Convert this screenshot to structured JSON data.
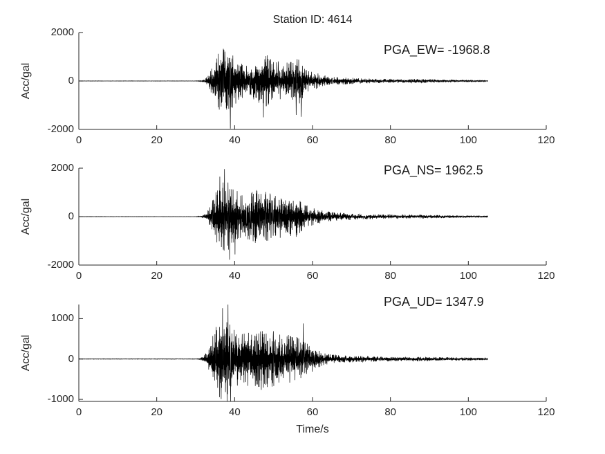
{
  "figure": {
    "background": "#ffffff",
    "axis_color": "#262626",
    "trace_color": "#000000",
    "text_color": "#1a1a1a"
  },
  "chart_data": {
    "type": "line",
    "title": "Station ID: 4614",
    "xlabel": "Time/s",
    "ylabel_shared": "Acc/gal",
    "xlim": [
      0,
      120
    ],
    "xticks": [
      0,
      20,
      40,
      60,
      80,
      100,
      120
    ],
    "grid": false,
    "legend": "none",
    "signal_description": "Three-component strong-motion accelerogram; quiescent 0-31 s, strong shaking 32-62 s, decaying coda ending at 105 s",
    "subplots": [
      {
        "channel": "EW",
        "ylabel": "Acc/gal",
        "annotation": "PGA_EW= -1968.8",
        "pga": -1968.8,
        "ylim": [
          -2000,
          2000
        ],
        "yticks": [
          2000,
          0,
          -2000
        ],
        "signal_start_s": 31,
        "signal_end_s": 105,
        "envelope": [
          [
            0,
            6
          ],
          [
            30,
            6
          ],
          [
            31.5,
            25
          ],
          [
            32.5,
            90
          ],
          [
            33.5,
            300
          ],
          [
            34.5,
            750
          ],
          [
            35.5,
            1050
          ],
          [
            36.5,
            1300
          ],
          [
            37.5,
            1340
          ],
          [
            38.5,
            1300
          ],
          [
            39.5,
            1200
          ],
          [
            40.5,
            900
          ],
          [
            41.5,
            750
          ],
          [
            42.5,
            650
          ],
          [
            43.5,
            620
          ],
          [
            44.5,
            700
          ],
          [
            45.5,
            900
          ],
          [
            46.5,
            1080
          ],
          [
            47.5,
            1150
          ],
          [
            48.5,
            1050
          ],
          [
            49.5,
            900
          ],
          [
            50.5,
            820
          ],
          [
            52,
            800
          ],
          [
            53.5,
            760
          ],
          [
            55,
            880
          ],
          [
            56.5,
            950
          ],
          [
            57.2,
            980
          ],
          [
            58,
            550
          ],
          [
            59,
            430
          ],
          [
            60,
            380
          ],
          [
            61,
            330
          ],
          [
            62,
            290
          ],
          [
            63,
            240
          ],
          [
            64,
            200
          ],
          [
            66,
            170
          ],
          [
            68,
            150
          ],
          [
            70,
            130
          ],
          [
            73,
            110
          ],
          [
            76,
            95
          ],
          [
            80,
            88
          ],
          [
            84,
            75
          ],
          [
            88,
            82
          ],
          [
            92,
            70
          ],
          [
            96,
            55
          ],
          [
            100,
            45
          ],
          [
            103,
            35
          ],
          [
            105,
            25
          ]
        ],
        "peaks": [
          [
            38.9,
            -1968.8
          ],
          [
            37.1,
            1330
          ],
          [
            47.4,
            -1500
          ],
          [
            55.8,
            -1400
          ],
          [
            57.1,
            -1480
          ]
        ]
      },
      {
        "channel": "NS",
        "ylabel": "Acc/gal",
        "annotation": "PGA_NS= 1962.5",
        "pga": 1962.5,
        "ylim": [
          -2000,
          2000
        ],
        "yticks": [
          2000,
          0,
          -2000
        ],
        "signal_start_s": 31,
        "signal_end_s": 105,
        "envelope": [
          [
            0,
            6
          ],
          [
            30,
            6
          ],
          [
            31.5,
            30
          ],
          [
            32.5,
            120
          ],
          [
            33.5,
            350
          ],
          [
            34.5,
            800
          ],
          [
            35.5,
            1150
          ],
          [
            36.5,
            1400
          ],
          [
            37.5,
            1500
          ],
          [
            38.5,
            1400
          ],
          [
            39.5,
            1300
          ],
          [
            40.5,
            1100
          ],
          [
            41.5,
            900
          ],
          [
            42.5,
            850
          ],
          [
            43.5,
            950
          ],
          [
            44.5,
            1050
          ],
          [
            45.5,
            1120
          ],
          [
            46.5,
            1100
          ],
          [
            47.5,
            1050
          ],
          [
            48.5,
            1000
          ],
          [
            49.5,
            950
          ],
          [
            51,
            900
          ],
          [
            52.5,
            880
          ],
          [
            54,
            820
          ],
          [
            55.5,
            850
          ],
          [
            57,
            840
          ],
          [
            58,
            520
          ],
          [
            59,
            420
          ],
          [
            60,
            360
          ],
          [
            62,
            280
          ],
          [
            64,
            220
          ],
          [
            66,
            185
          ],
          [
            68,
            155
          ],
          [
            70,
            135
          ],
          [
            74,
            112
          ],
          [
            78,
            92
          ],
          [
            82,
            82
          ],
          [
            86,
            88
          ],
          [
            90,
            75
          ],
          [
            94,
            60
          ],
          [
            98,
            50
          ],
          [
            102,
            40
          ],
          [
            105,
            30
          ]
        ],
        "peaks": [
          [
            37.4,
            1962.5
          ],
          [
            36.2,
            1650
          ],
          [
            38.7,
            -1780
          ],
          [
            40.1,
            -1560
          ]
        ]
      },
      {
        "channel": "UD",
        "ylabel": "Acc/gal",
        "annotation": "PGA_UD= 1347.9",
        "pga": 1347.9,
        "ylim": [
          -1050,
          1350
        ],
        "yticks": [
          1000,
          0,
          -1000
        ],
        "signal_start_s": 31,
        "signal_end_s": 105,
        "envelope": [
          [
            0,
            5
          ],
          [
            30,
            5
          ],
          [
            31,
            15
          ],
          [
            32,
            70
          ],
          [
            33,
            200
          ],
          [
            34,
            480
          ],
          [
            35,
            750
          ],
          [
            36,
            950
          ],
          [
            37,
            1050
          ],
          [
            38,
            1120
          ],
          [
            39,
            1000
          ],
          [
            40,
            820
          ],
          [
            41,
            680
          ],
          [
            42,
            620
          ],
          [
            43,
            660
          ],
          [
            44,
            720
          ],
          [
            45,
            780
          ],
          [
            46,
            720
          ],
          [
            47,
            780
          ],
          [
            48,
            720
          ],
          [
            49,
            660
          ],
          [
            50,
            720
          ],
          [
            51,
            660
          ],
          [
            52,
            610
          ],
          [
            53,
            660
          ],
          [
            54,
            610
          ],
          [
            55,
            560
          ],
          [
            56,
            620
          ],
          [
            57,
            520
          ],
          [
            58,
            420
          ],
          [
            59,
            360
          ],
          [
            60,
            310
          ],
          [
            61,
            260
          ],
          [
            62,
            210
          ],
          [
            63,
            160
          ],
          [
            64,
            130
          ],
          [
            66,
            105
          ],
          [
            68,
            92
          ],
          [
            70,
            82
          ],
          [
            74,
            72
          ],
          [
            78,
            62
          ],
          [
            82,
            56
          ],
          [
            86,
            62
          ],
          [
            90,
            52
          ],
          [
            94,
            46
          ],
          [
            98,
            40
          ],
          [
            102,
            35
          ],
          [
            105,
            26
          ]
        ],
        "peaks": [
          [
            38.3,
            1347.9
          ],
          [
            36.9,
            1260
          ],
          [
            38.95,
            -1045
          ],
          [
            57.6,
            880
          ]
        ]
      }
    ]
  }
}
